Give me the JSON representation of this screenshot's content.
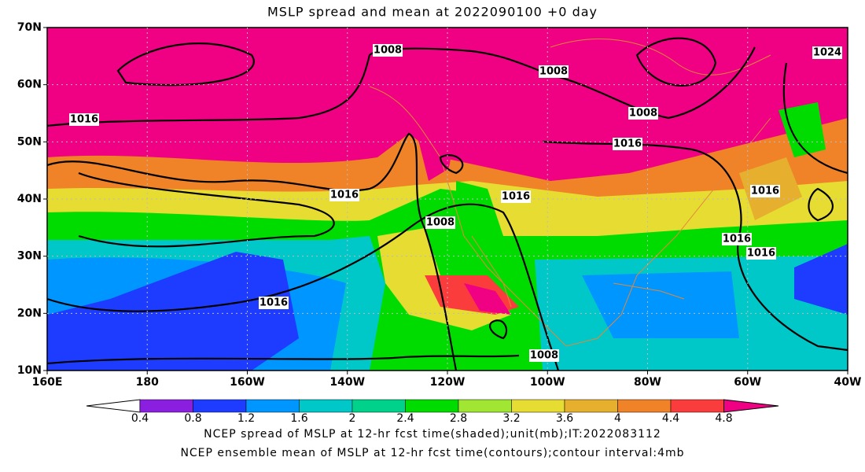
{
  "title": "MSLP spread and mean at 2022090100 +0 day",
  "map": {
    "xlim": [
      160,
      320
    ],
    "ylim": [
      10,
      70
    ],
    "xticks": [
      {
        "value": 160,
        "label": "160E"
      },
      180,
      {
        "value": 200,
        "label": "160W"
      },
      {
        "value": 220,
        "label": "140W"
      },
      {
        "value": 240,
        "label": "120W"
      },
      {
        "value": 260,
        "label": "100W"
      },
      {
        "value": 280,
        "label": "80W"
      },
      {
        "value": 300,
        "label": "60W"
      },
      {
        "value": 320,
        "label": "40W"
      }
    ],
    "yticks": [
      {
        "value": 10,
        "label": "10N"
      },
      {
        "value": 20,
        "label": "20N"
      },
      {
        "value": 30,
        "label": "30N"
      },
      {
        "value": 40,
        "label": "40N"
      },
      {
        "value": 50,
        "label": "50N"
      },
      {
        "value": 60,
        "label": "60N"
      },
      {
        "value": 70,
        "label": "70N"
      }
    ],
    "grid": true,
    "contour_labels": [
      1008,
      1008,
      1016,
      1008,
      1016,
      1016,
      1016,
      1008,
      1016,
      1016,
      1016,
      1016,
      1008,
      1024
    ]
  },
  "colorbar": {
    "levels": [
      0.4,
      0.8,
      1.2,
      1.6,
      2,
      2.4,
      2.8,
      3.2,
      3.6,
      4,
      4.4,
      4.8
    ],
    "colors": [
      "#ffffff",
      "#8a1fe0",
      "#1e3cff",
      "#0096ff",
      "#00c8c8",
      "#00d28c",
      "#00dc00",
      "#a0e632",
      "#e6dc32",
      "#e6af2d",
      "#f08228",
      "#fa3c3c",
      "#f00082"
    ]
  },
  "footer": [
    "NCEP spread of MSLP at 12-hr fcst time(shaded);unit(mb);IT:2022083112",
    "NCEP ensemble mean of MSLP at 12-hr fcst time(contours);contour interval:4mb"
  ]
}
